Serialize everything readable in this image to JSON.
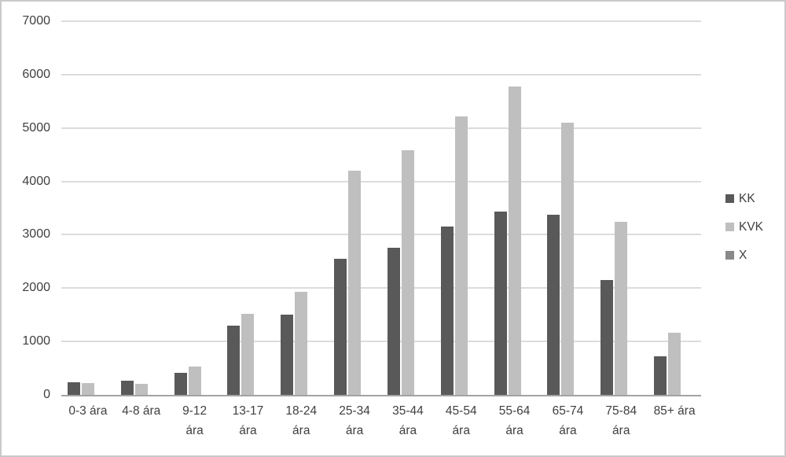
{
  "chart_data": {
    "type": "bar",
    "title": "",
    "xlabel": "",
    "ylabel": "",
    "categories": [
      "0-3 ára",
      "4-8 ára",
      "9-12 ára",
      "13-17 ára",
      "18-24 ára",
      "25-34 ára",
      "35-44 ára",
      "45-54 ára",
      "55-64 ára",
      "65-74 ára",
      "75-84 ára",
      "85+ ára"
    ],
    "category_tick_lines": [
      [
        "0-3 ára"
      ],
      [
        "4-8 ára"
      ],
      [
        "9-12",
        "ára"
      ],
      [
        "13-17",
        "ára"
      ],
      [
        "18-24",
        "ára"
      ],
      [
        "25-34",
        "ára"
      ],
      [
        "35-44",
        "ára"
      ],
      [
        "45-54",
        "ára"
      ],
      [
        "55-64",
        "ára"
      ],
      [
        "65-74",
        "ára"
      ],
      [
        "75-84",
        "ára"
      ],
      [
        "85+ ára"
      ]
    ],
    "series": [
      {
        "name": "KK",
        "color": "#595959",
        "values": [
          230,
          265,
          420,
          1300,
          1500,
          2550,
          2750,
          3150,
          3430,
          3380,
          2150,
          720
        ]
      },
      {
        "name": "KVK",
        "color": "#bfbfbf",
        "values": [
          225,
          205,
          530,
          1520,
          1930,
          4200,
          4590,
          5220,
          5780,
          5100,
          3240,
          1170
        ]
      },
      {
        "name": "X",
        "color": "#898989",
        "values": [
          0,
          0,
          0,
          0,
          0,
          0,
          0,
          0,
          0,
          0,
          0,
          0
        ]
      }
    ],
    "ylim": [
      0,
      7000
    ],
    "yticks": [
      0,
      1000,
      2000,
      3000,
      4000,
      5000,
      6000,
      7000
    ],
    "grid": true,
    "legend_position": "right"
  },
  "colors": {
    "gridline": "#dcdcdc",
    "axis_line": "#a3a3a3",
    "text": "#3f3f3f",
    "figure_border": "#c9c9c9",
    "background": "#ffffff"
  }
}
